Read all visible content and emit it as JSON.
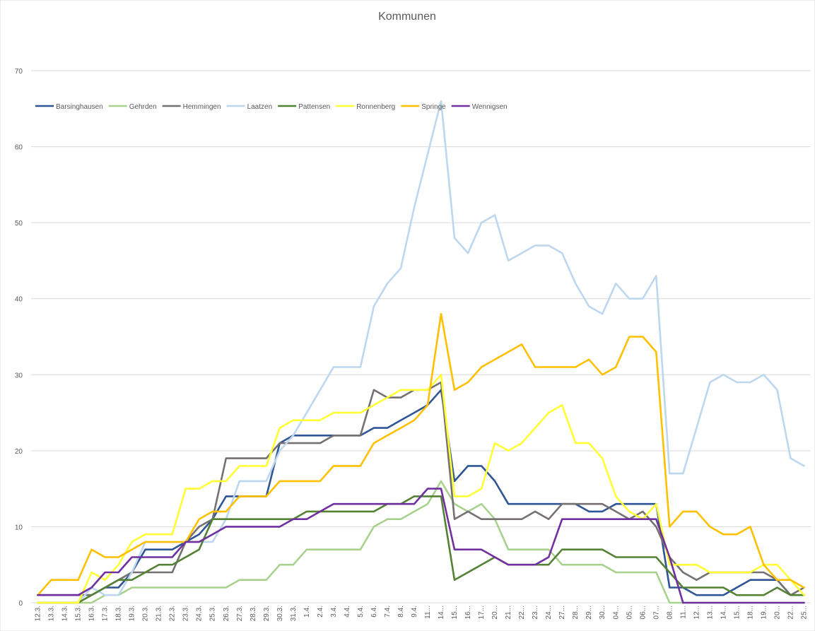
{
  "chart_data": {
    "type": "line",
    "title": "Kommunen",
    "xlabel": "",
    "ylabel": "",
    "ylim": [
      0,
      70
    ],
    "y_ticks": [
      0,
      10,
      20,
      30,
      40,
      50,
      60,
      70
    ],
    "grid": true,
    "legend_position": "top-left",
    "categories": [
      "12.3.",
      "13.3.",
      "14.3.",
      "15.3.",
      "16.3.",
      "17.3.",
      "18.3.",
      "19.3.",
      "20.3.",
      "21.3.",
      "22.3.",
      "23.3.",
      "24.3.",
      "25.3.",
      "26.3.",
      "27.3.",
      "28.3.",
      "29.3.",
      "30.3.",
      "31.3.",
      "1.4.",
      "2.4.",
      "3.4.",
      "4.4.",
      "5.4.",
      "6.4.",
      "7.4.",
      "8.4.",
      "9.4.",
      "11...",
      "14...",
      "15...",
      "16...",
      "17...",
      "20...",
      "21...",
      "22...",
      "23...",
      "24...",
      "27...",
      "28...",
      "29...",
      "30...",
      "04...",
      "05...",
      "06...",
      "07...",
      "08...",
      "11...",
      "12...",
      "13...",
      "14...",
      "15...",
      "18...",
      "19...",
      "20...",
      "22...",
      "25..."
    ],
    "series": [
      {
        "name": "Barsinghausen",
        "color": "#2f5597",
        "values": [
          1,
          1,
          1,
          1,
          1,
          2,
          2,
          4,
          7,
          7,
          7,
          8,
          9,
          11,
          14,
          14,
          14,
          14,
          21,
          22,
          22,
          22,
          22,
          22,
          22,
          23,
          23,
          24,
          25,
          26,
          28,
          16,
          18,
          18,
          16,
          13,
          13,
          13,
          13,
          13,
          13,
          12,
          12,
          13,
          13,
          13,
          13,
          2,
          2,
          1,
          1,
          1,
          2,
          3,
          3,
          3,
          1,
          1
        ]
      },
      {
        "name": "Gehrden",
        "color": "#a9d18e",
        "values": [
          0,
          0,
          0,
          0,
          0,
          1,
          1,
          2,
          2,
          2,
          2,
          2,
          2,
          2,
          2,
          3,
          3,
          3,
          5,
          5,
          7,
          7,
          7,
          7,
          7,
          10,
          11,
          11,
          12,
          13,
          16,
          13,
          12,
          13,
          11,
          7,
          7,
          7,
          7,
          5,
          5,
          5,
          5,
          4,
          4,
          4,
          4,
          0,
          0,
          0,
          0,
          0,
          0,
          0,
          0,
          0,
          0,
          0
        ]
      },
      {
        "name": "Hemmingen",
        "color": "#767171",
        "values": [
          1,
          1,
          1,
          1,
          1,
          2,
          3,
          4,
          4,
          4,
          4,
          8,
          10,
          11,
          19,
          19,
          19,
          19,
          21,
          21,
          21,
          21,
          22,
          22,
          22,
          28,
          27,
          27,
          28,
          28,
          29,
          11,
          12,
          11,
          11,
          11,
          11,
          12,
          11,
          13,
          13,
          13,
          13,
          12,
          11,
          12,
          10,
          6,
          4,
          3,
          4,
          4,
          4,
          4,
          4,
          3,
          1,
          2
        ]
      },
      {
        "name": "Laatzen",
        "color": "#bdd7ee",
        "values": [
          0,
          0,
          0,
          0,
          2,
          1,
          1,
          4,
          8,
          8,
          8,
          8,
          8,
          8,
          11,
          16,
          16,
          16,
          20,
          22,
          25,
          28,
          31,
          31,
          31,
          39,
          42,
          44,
          52,
          59,
          66,
          48,
          46,
          50,
          51,
          45,
          46,
          47,
          47,
          46,
          42,
          39,
          38,
          42,
          40,
          40,
          43,
          17,
          17,
          23,
          29,
          30,
          29,
          29,
          30,
          28,
          19,
          18
        ]
      },
      {
        "name": "Pattensen",
        "color": "#548235",
        "values": [
          0,
          0,
          0,
          0,
          1,
          2,
          3,
          3,
          4,
          5,
          5,
          6,
          7,
          11,
          11,
          11,
          11,
          11,
          11,
          11,
          12,
          12,
          12,
          12,
          12,
          12,
          13,
          13,
          14,
          14,
          14,
          3,
          4,
          5,
          6,
          5,
          5,
          5,
          5,
          7,
          7,
          7,
          7,
          6,
          6,
          6,
          6,
          4,
          2,
          2,
          2,
          2,
          1,
          1,
          1,
          2,
          1,
          1
        ]
      },
      {
        "name": "Ronnenberg",
        "color": "#ffff33",
        "values": [
          0,
          0,
          0,
          0,
          4,
          3,
          5,
          8,
          9,
          9,
          9,
          15,
          15,
          16,
          16,
          18,
          18,
          18,
          23,
          24,
          24,
          24,
          25,
          25,
          25,
          26,
          27,
          28,
          28,
          28,
          30,
          14,
          14,
          15,
          21,
          20,
          21,
          23,
          25,
          26,
          21,
          21,
          19,
          14,
          12,
          11,
          13,
          5,
          5,
          5,
          4,
          4,
          4,
          4,
          5,
          5,
          3,
          1
        ]
      },
      {
        "name": "Springe",
        "color": "#ffc000",
        "values": [
          1,
          3,
          3,
          3,
          7,
          6,
          6,
          7,
          8,
          8,
          8,
          8,
          11,
          12,
          12,
          14,
          14,
          14,
          16,
          16,
          16,
          16,
          18,
          18,
          18,
          21,
          22,
          23,
          24,
          26,
          38,
          28,
          29,
          31,
          32,
          33,
          34,
          31,
          31,
          31,
          31,
          32,
          30,
          31,
          35,
          35,
          33,
          10,
          12,
          12,
          10,
          9,
          9,
          10,
          5,
          3,
          3,
          2
        ]
      },
      {
        "name": "Wennigsen",
        "color": "#7030a0",
        "values": [
          1,
          1,
          1,
          1,
          2,
          4,
          4,
          6,
          6,
          6,
          6,
          8,
          8,
          9,
          10,
          10,
          10,
          10,
          10,
          11,
          11,
          12,
          13,
          13,
          13,
          13,
          13,
          13,
          13,
          15,
          15,
          7,
          7,
          7,
          6,
          5,
          5,
          5,
          6,
          11,
          11,
          11,
          11,
          11,
          11,
          11,
          11,
          6,
          0,
          0,
          0,
          0,
          0,
          0,
          0,
          0,
          0,
          0
        ]
      }
    ]
  }
}
